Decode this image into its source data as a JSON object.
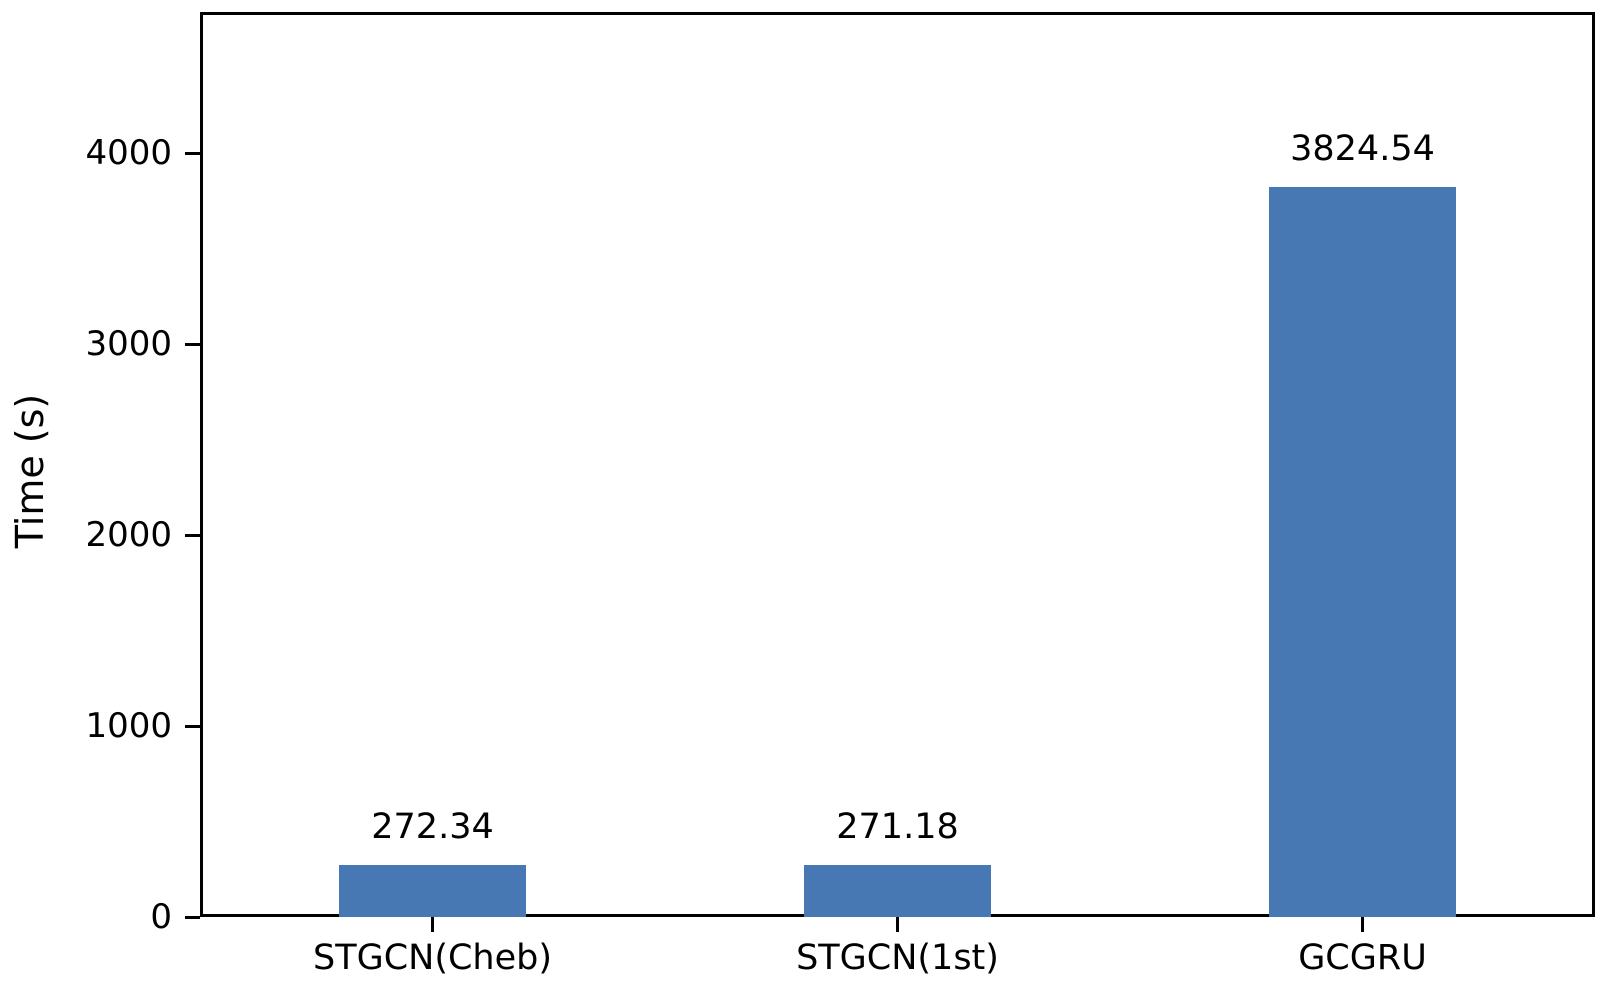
{
  "chart_data": {
    "type": "bar",
    "title": "",
    "xlabel": "",
    "ylabel": "Time (s)",
    "categories": [
      "STGCN(Cheb)",
      "STGCN(1st)",
      "GCGRU"
    ],
    "values": [
      272.34,
      271.18,
      3824.54
    ],
    "value_labels": [
      "272.34",
      "271.18",
      "3824.54"
    ],
    "yticks": [
      0,
      1000,
      2000,
      3000,
      4000
    ],
    "ytick_labels": [
      "0",
      "1000",
      "2000",
      "3000",
      "4000"
    ],
    "ylim": [
      0,
      4740
    ],
    "grid": false,
    "legend_position": "none",
    "bar_color": "#4778B4",
    "spine_color": "#000000",
    "text_color": "#000000"
  }
}
